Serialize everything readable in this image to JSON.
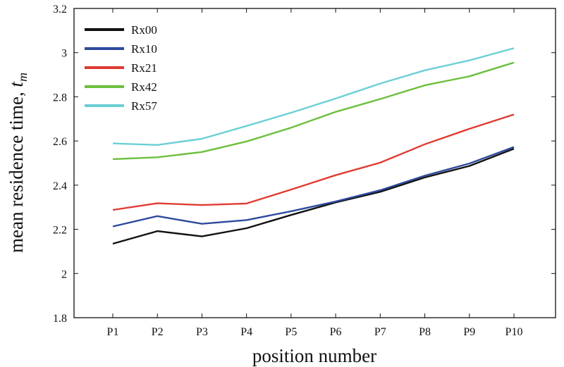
{
  "chart_data": {
    "type": "line",
    "title": "",
    "xlabel": "position number",
    "ylabel_main": "mean residence time, ",
    "ylabel_symbol": "t",
    "ylabel_subscript": "m",
    "categories": [
      "P1",
      "P2",
      "P3",
      "P4",
      "P5",
      "P6",
      "P7",
      "P8",
      "P9",
      "P10"
    ],
    "ylim": [
      1.8,
      3.2
    ],
    "yticks": [
      1.8,
      2,
      2.2,
      2.4,
      2.6,
      2.8,
      3,
      3.2
    ],
    "ytick_labels": [
      "1.8",
      "2",
      "2.2",
      "2.4",
      "2.6",
      "2.8",
      "3",
      "3.2"
    ],
    "grid": false,
    "legend_position": "top-left",
    "series": [
      {
        "name": "Rx00",
        "color": "#111111",
        "values": [
          2.135,
          2.192,
          2.168,
          2.205,
          2.265,
          2.322,
          2.37,
          2.435,
          2.487,
          2.565
        ]
      },
      {
        "name": "Rx10",
        "color": "#2e4a9e",
        "values": [
          2.213,
          2.26,
          2.225,
          2.242,
          2.282,
          2.326,
          2.377,
          2.443,
          2.498,
          2.573
        ]
      },
      {
        "name": "Rx21",
        "color": "#e03b32",
        "values": [
          2.288,
          2.318,
          2.31,
          2.317,
          2.38,
          2.445,
          2.502,
          2.585,
          2.655,
          2.72
        ]
      },
      {
        "name": "Rx42",
        "color": "#6cbf3c",
        "values": [
          2.518,
          2.526,
          2.55,
          2.598,
          2.66,
          2.732,
          2.79,
          2.852,
          2.893,
          2.955
        ]
      },
      {
        "name": "Rx57",
        "color": "#6ccfd6",
        "values": [
          2.589,
          2.582,
          2.61,
          2.668,
          2.728,
          2.792,
          2.86,
          2.92,
          2.965,
          3.02
        ]
      }
    ]
  }
}
